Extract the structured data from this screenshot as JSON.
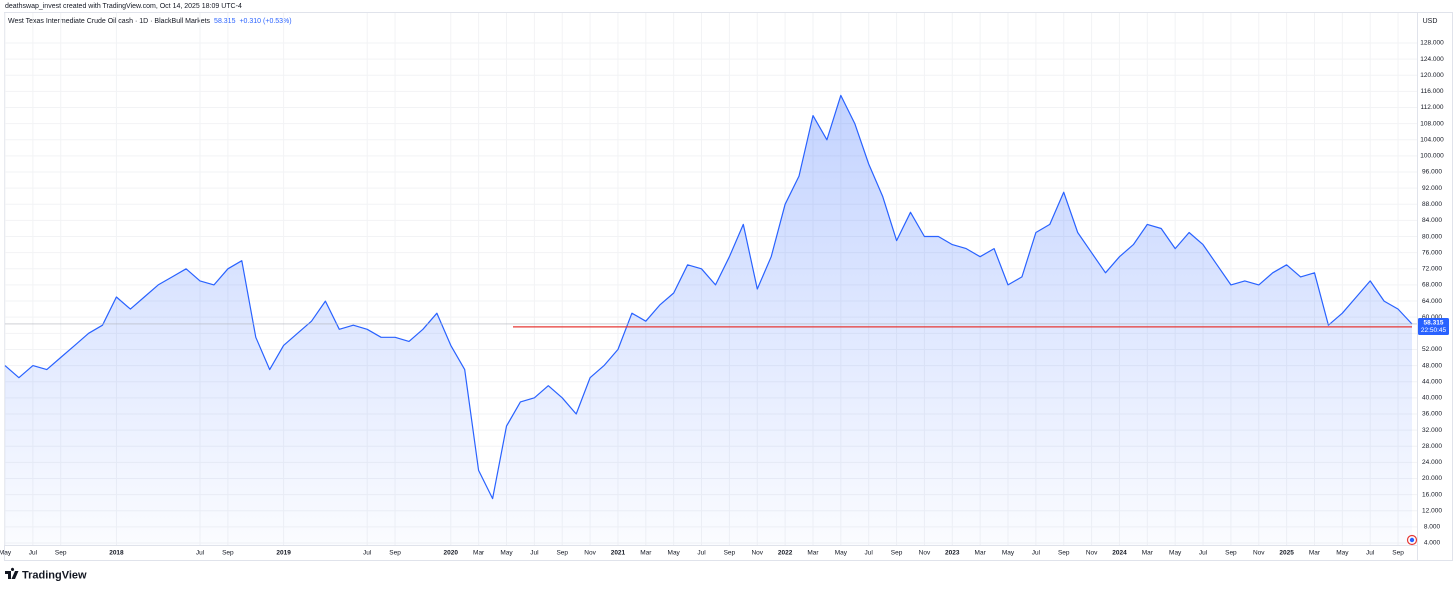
{
  "chart_data": {
    "type": "area",
    "attribution": "deathswap_invest created with TradingView.com, Oct 14, 2025 18:09 UTC-4",
    "title": "West Texas Intermediate Crude Oil cash · 1D · BlackBull Markets",
    "change": "+0.310 (+0.53%)",
    "currency": "USD",
    "countdown": "22:50:45",
    "brand": "TradingView",
    "categories": [
      "May",
      null,
      "Jul",
      null,
      "Sep",
      null,
      null,
      null,
      "2018",
      null,
      null,
      null,
      null,
      null,
      "Jul",
      null,
      "Sep",
      null,
      null,
      null,
      "2019",
      null,
      null,
      null,
      null,
      null,
      "Jul",
      null,
      "Sep",
      null,
      null,
      null,
      "2020",
      null,
      "Mar",
      null,
      "May",
      null,
      "Jul",
      null,
      "Sep",
      null,
      "Nov",
      null,
      "2021",
      null,
      "Mar",
      null,
      "May",
      null,
      "Jul",
      null,
      "Sep",
      null,
      "Nov",
      null,
      "2022",
      null,
      "Mar",
      null,
      "May",
      null,
      "Jul",
      null,
      "Sep",
      null,
      "Nov",
      null,
      "2023",
      null,
      "Mar",
      null,
      "May",
      null,
      "Jul",
      null,
      "Sep",
      null,
      "Nov",
      null,
      "2024",
      null,
      "Mar",
      null,
      "May",
      null,
      "Jul",
      null,
      "Sep",
      null,
      "Nov",
      null,
      "2025",
      null,
      "Mar",
      null,
      "May",
      null,
      "Jul",
      null,
      "Sep",
      null
    ],
    "series": [
      {
        "name": "West Texas Intermediate Crude Oil cash",
        "color": "#2962ff",
        "values": [
          48,
          45,
          48,
          47,
          50,
          53,
          56,
          58,
          65,
          62,
          65,
          68,
          70,
          72,
          69,
          68,
          72,
          74,
          55,
          47,
          53,
          56,
          59,
          64,
          57,
          58,
          57,
          55,
          55,
          54,
          57,
          61,
          53,
          47,
          22,
          15,
          33,
          39,
          40,
          43,
          40,
          36,
          45,
          48,
          52,
          61,
          59,
          63,
          66,
          73,
          72,
          68,
          75,
          83,
          67,
          75,
          88,
          95,
          110,
          104,
          115,
          108,
          98,
          90,
          79,
          86,
          80,
          80,
          78,
          77,
          75,
          77,
          68,
          70,
          81,
          83,
          91,
          81,
          76,
          71,
          75,
          78,
          83,
          82,
          77,
          81,
          78,
          73,
          68,
          69,
          68,
          71,
          73,
          70,
          71,
          58,
          61,
          65,
          69,
          64,
          62,
          58.315
        ]
      }
    ],
    "support_line": {
      "value": 57.6,
      "color": "#e53935"
    },
    "ylim": [
      3.5,
      135.44
    ],
    "yticks": [
      {
        "value": 4,
        "label": "4.000"
      },
      {
        "value": 8,
        "label": "8.000"
      },
      {
        "value": 12,
        "label": "12.000"
      },
      {
        "value": 16,
        "label": "16.000"
      },
      {
        "value": 20,
        "label": "20.000"
      },
      {
        "value": 24,
        "label": "24.000"
      },
      {
        "value": 28,
        "label": "28.000"
      },
      {
        "value": 32,
        "label": "32.000"
      },
      {
        "value": 36,
        "label": "36.000"
      },
      {
        "value": 40,
        "label": "40.000"
      },
      {
        "value": 44,
        "label": "44.000"
      },
      {
        "value": 48,
        "label": "48.000"
      },
      {
        "value": 52,
        "label": "52.000"
      },
      {
        "value": 56,
        "label": "56.000"
      },
      {
        "value": 60,
        "label": "60.000"
      },
      {
        "value": 64,
        "label": "64.000"
      },
      {
        "value": 68,
        "label": "68.000"
      },
      {
        "value": 72,
        "label": "72.000"
      },
      {
        "value": 76,
        "label": "76.000"
      },
      {
        "value": 80,
        "label": "80.000"
      },
      {
        "value": 84,
        "label": "84.000"
      },
      {
        "value": 88,
        "label": "88.000"
      },
      {
        "value": 92,
        "label": "92.000"
      },
      {
        "value": 96,
        "label": "96.000"
      },
      {
        "value": 100,
        "label": "100.000"
      },
      {
        "value": 104,
        "label": "104.000"
      },
      {
        "value": 108,
        "label": "108.000"
      },
      {
        "value": 112,
        "label": "112.000"
      },
      {
        "value": 116,
        "label": "116.000"
      },
      {
        "value": 120,
        "label": "120.000"
      },
      {
        "value": 124,
        "label": "124.000"
      },
      {
        "value": 128,
        "label": "128.000"
      }
    ],
    "grid": true
  }
}
